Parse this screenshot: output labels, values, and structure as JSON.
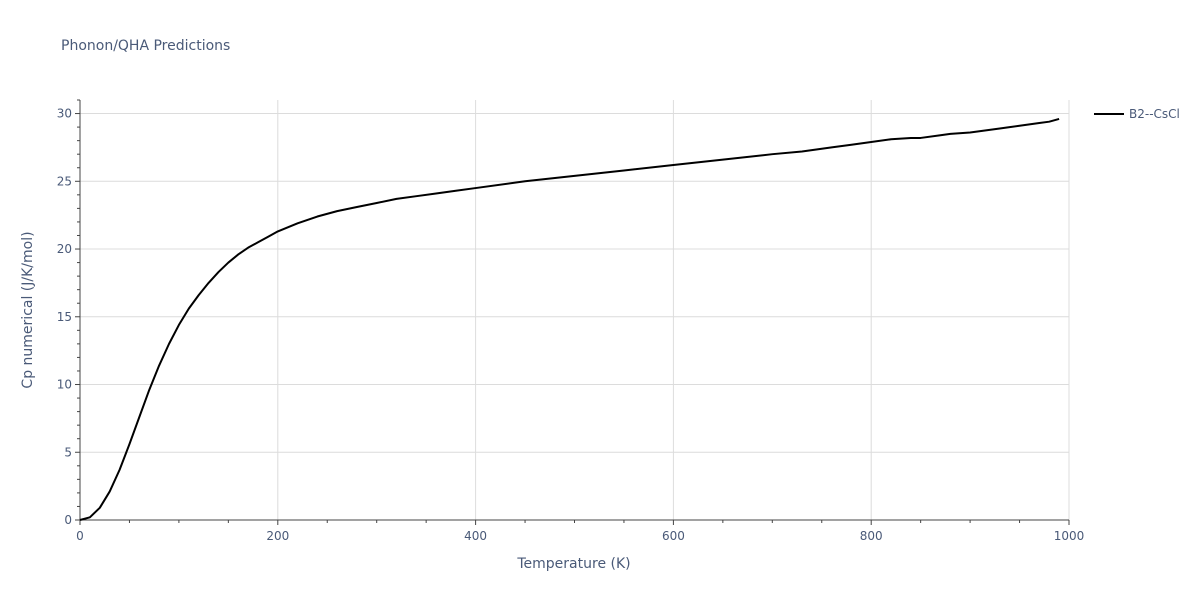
{
  "chart_data": {
    "type": "line",
    "title": "Phonon/QHA Predictions",
    "xlabel": "Temperature (K)",
    "ylabel": "Cp numerical (J/K/mol)",
    "xlim": [
      0,
      1000
    ],
    "ylim": [
      0,
      31
    ],
    "x_ticks": [
      0,
      200,
      400,
      600,
      800,
      1000
    ],
    "y_ticks": [
      0,
      5,
      10,
      15,
      20,
      25,
      30
    ],
    "grid": true,
    "legend_position": "top-right",
    "series": [
      {
        "name": "B2--CsCl",
        "color": "#000000",
        "x": [
          0,
          10,
          20,
          30,
          40,
          50,
          60,
          70,
          80,
          90,
          100,
          110,
          120,
          130,
          140,
          150,
          160,
          170,
          180,
          190,
          200,
          220,
          240,
          260,
          280,
          300,
          320,
          340,
          360,
          380,
          400,
          450,
          500,
          550,
          600,
          650,
          700,
          730,
          740,
          760,
          780,
          800,
          820,
          840,
          850,
          870,
          880,
          900,
          930,
          940,
          950,
          960,
          970,
          980,
          990
        ],
        "y": [
          0,
          0.2,
          0.9,
          2.1,
          3.7,
          5.6,
          7.6,
          9.6,
          11.4,
          13.0,
          14.4,
          15.6,
          16.6,
          17.5,
          18.3,
          19.0,
          19.6,
          20.1,
          20.5,
          20.9,
          21.3,
          21.9,
          22.4,
          22.8,
          23.1,
          23.4,
          23.7,
          23.9,
          24.1,
          24.3,
          24.5,
          25.0,
          25.4,
          25.8,
          26.2,
          26.6,
          27.0,
          27.2,
          27.3,
          27.5,
          27.7,
          27.9,
          28.1,
          28.2,
          28.2,
          28.4,
          28.5,
          28.6,
          28.9,
          29.0,
          29.1,
          29.2,
          29.3,
          29.4,
          29.6
        ]
      }
    ]
  }
}
